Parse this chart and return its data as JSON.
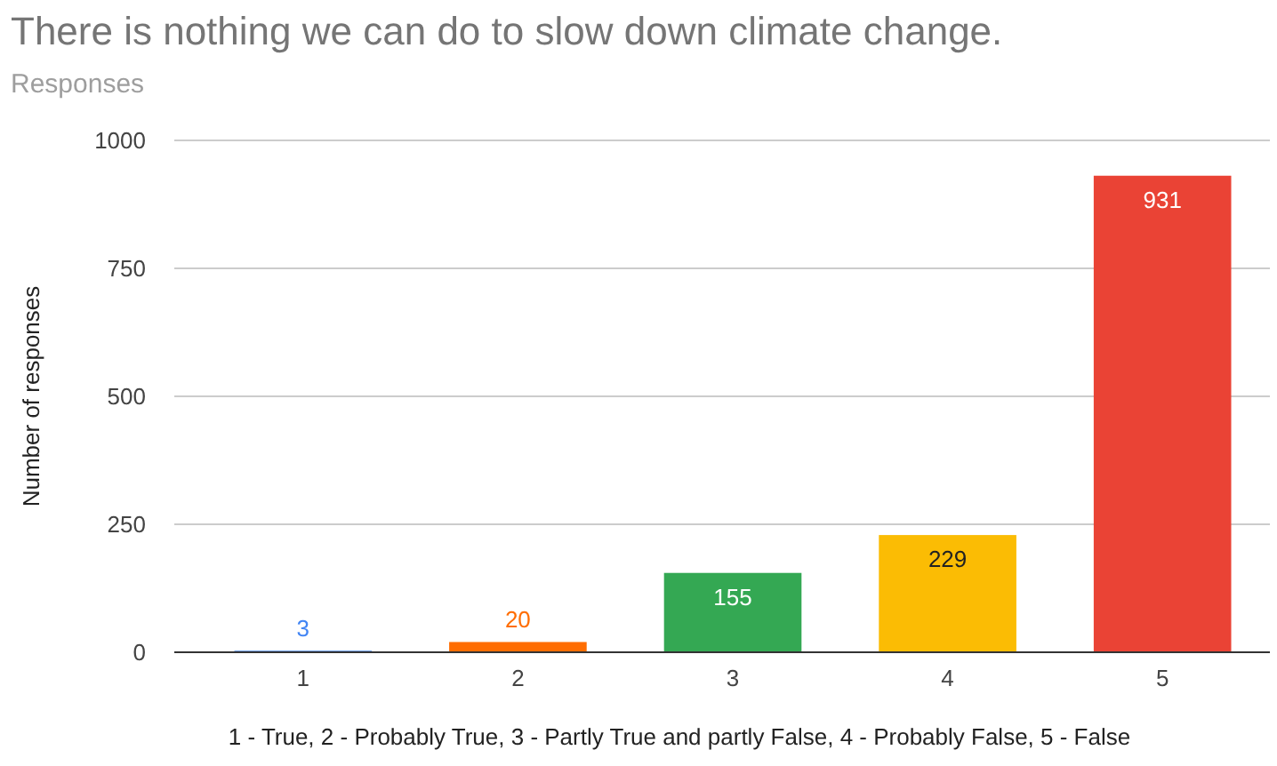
{
  "chart_data": {
    "type": "bar",
    "title": "There is nothing we can do to slow down climate change.",
    "subtitle": "Responses",
    "categories": [
      "1",
      "2",
      "3",
      "4",
      "5"
    ],
    "values": [
      3,
      20,
      155,
      229,
      931
    ],
    "colors": [
      "#4285f4",
      "#ff6d01",
      "#34a853",
      "#fbbc04",
      "#ea4335"
    ],
    "xlabel": "1 - True, 2 - Probably True, 3 - Partly True and partly False, 4 - Probably False, 5 - False",
    "ylabel": "Number of responses",
    "ylim": [
      0,
      1000
    ],
    "yticks": [
      0,
      250,
      500,
      750,
      1000
    ],
    "grid": "y",
    "data_labels": true
  }
}
